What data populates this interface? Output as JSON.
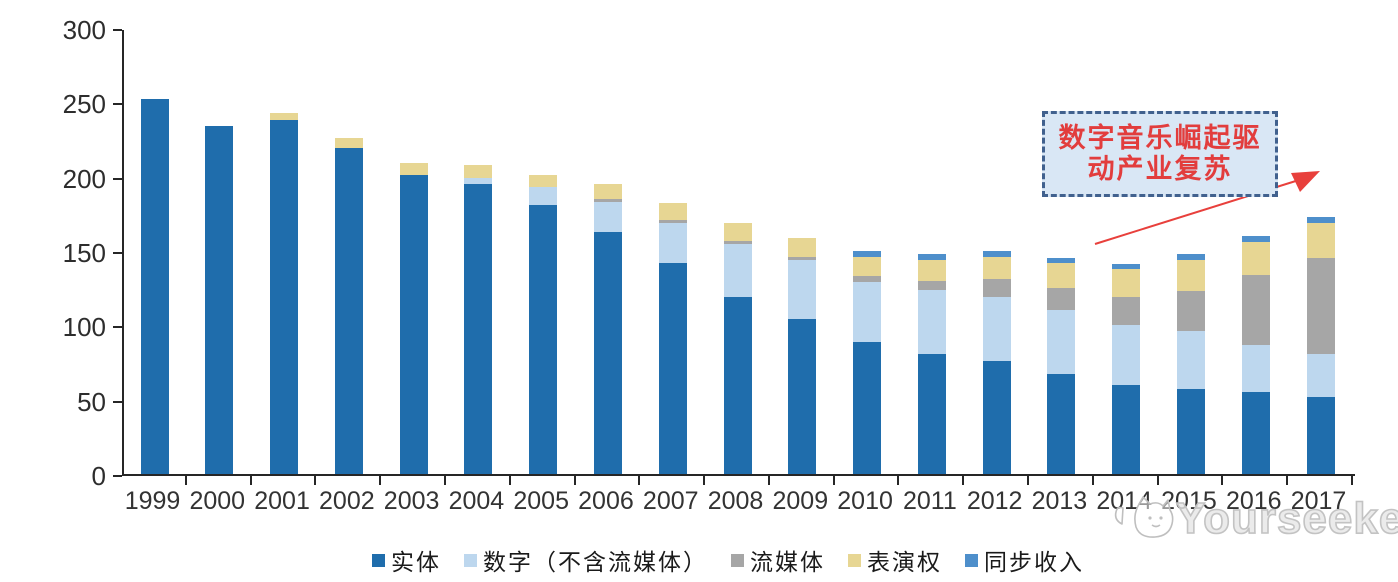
{
  "chart_data": {
    "type": "bar",
    "subtype": "stacked",
    "title": "",
    "xlabel": "",
    "ylabel": "",
    "categories": [
      "1999",
      "2000",
      "2001",
      "2002",
      "2003",
      "2004",
      "2005",
      "2006",
      "2007",
      "2008",
      "2009",
      "2010",
      "2011",
      "2012",
      "2013",
      "2014",
      "2015",
      "2016",
      "2017"
    ],
    "series": [
      {
        "key": "physical",
        "name": "实体",
        "color": "#1F6DAC",
        "values": [
          252,
          234,
          238,
          219,
          201,
          195,
          181,
          163,
          142,
          119,
          104,
          89,
          81,
          76,
          67,
          60,
          57,
          55,
          52
        ]
      },
      {
        "key": "digital",
        "name": "数字（不含流媒体）",
        "color": "#BDD7EE",
        "values": [
          0,
          0,
          0,
          0,
          0,
          4,
          12,
          20,
          27,
          36,
          40,
          40,
          43,
          43,
          43,
          40,
          39,
          32,
          29
        ]
      },
      {
        "key": "streaming",
        "name": "流媒体",
        "color": "#A6A6A6",
        "values": [
          0,
          0,
          0,
          0,
          0,
          0,
          0,
          2,
          2,
          2,
          2,
          4,
          6,
          12,
          15,
          19,
          27,
          47,
          64
        ]
      },
      {
        "key": "performance",
        "name": "表演权",
        "color": "#E7D693",
        "values": [
          0,
          0,
          5,
          7,
          8,
          9,
          8,
          10,
          11,
          12,
          13,
          13,
          14,
          15,
          17,
          19,
          21,
          22,
          24
        ]
      },
      {
        "key": "sync",
        "name": "同步收入",
        "color": "#4E8FCB",
        "values": [
          0,
          0,
          0,
          0,
          0,
          0,
          0,
          0,
          0,
          0,
          0,
          4,
          4,
          4,
          3,
          3,
          4,
          4,
          4
        ]
      }
    ],
    "ylim": [
      0,
      300
    ],
    "yticks": [
      0,
      50,
      100,
      150,
      200,
      250,
      300
    ],
    "grid": false,
    "legend_position": "bottom",
    "axis_color": "#262626"
  },
  "annotation": {
    "line1": "数字音乐崛起驱",
    "line2": "动产业复苏",
    "text_color": "#E23D3D",
    "border_color": "#41618E",
    "bg_color": "#D9E7F5",
    "arrow_color": "#E8403C"
  },
  "watermark": {
    "text": "Yourseeker",
    "color": "#C3C3C3"
  }
}
